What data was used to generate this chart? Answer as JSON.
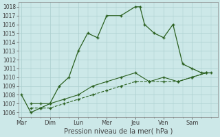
{
  "xlabel": "Pression niveau de la mer( hPa )",
  "background_color": "#cce8e8",
  "grid_color": "#aacece",
  "line_color": "#2a6020",
  "ylim": [
    1005.5,
    1018.5
  ],
  "yticks": [
    1006,
    1007,
    1008,
    1009,
    1010,
    1011,
    1012,
    1013,
    1014,
    1015,
    1016,
    1017,
    1018
  ],
  "xtick_labels": [
    "Mar",
    "Dim",
    "Lun",
    "Mer",
    "Jeu",
    "Ven",
    "Sam"
  ],
  "xtick_positions": [
    0,
    1,
    2,
    3,
    4,
    5,
    6
  ],
  "xlim": [
    -0.1,
    6.9
  ],
  "line1_x": [
    0,
    0.33,
    0.67,
    1.0,
    1.33,
    1.67,
    2.0,
    2.33,
    2.67,
    3.0,
    3.5,
    4.0,
    4.17,
    4.33,
    4.67,
    5.0,
    5.33,
    5.67,
    6.0,
    6.33,
    6.67
  ],
  "line1_y": [
    1008,
    1006,
    1006.5,
    1007,
    1009,
    1010,
    1013,
    1015,
    1014.5,
    1017,
    1017,
    1018,
    1018,
    1016,
    1015,
    1014.5,
    1016,
    1011.5,
    1011,
    1010.5,
    1010.5
  ],
  "line2_x": [
    0.33,
    0.67,
    1.0,
    1.5,
    2.0,
    2.5,
    3.0,
    3.5,
    4.0,
    4.5,
    5.0,
    5.5,
    6.0,
    6.5
  ],
  "line2_y": [
    1007,
    1007,
    1007,
    1007.5,
    1008,
    1009,
    1009.5,
    1010,
    1010.5,
    1009.5,
    1010,
    1009.5,
    1010,
    1010.5
  ],
  "line3_x": [
    0.33,
    0.67,
    1.0,
    1.5,
    2.0,
    2.5,
    3.0,
    3.5,
    4.0,
    4.5,
    5.0,
    5.5,
    6.0,
    6.5
  ],
  "line3_y": [
    1006.5,
    1006.5,
    1006.5,
    1007,
    1007.5,
    1008,
    1008.5,
    1009,
    1009.5,
    1009.5,
    1009.5,
    1009.5,
    1010,
    1010.5
  ],
  "ytick_fontsize": 5.5,
  "xtick_fontsize": 6.0,
  "xlabel_fontsize": 7.0
}
